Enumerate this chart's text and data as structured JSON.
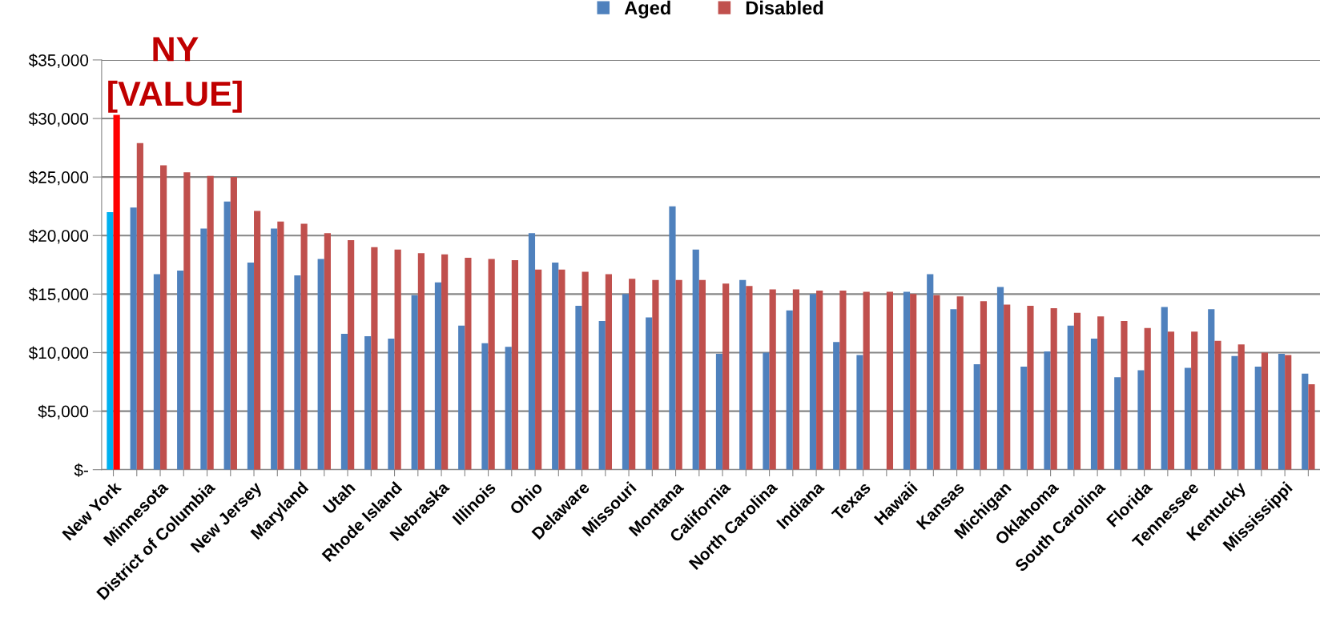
{
  "chart_data": {
    "type": "bar",
    "categories": [
      "New York",
      null,
      "Minnesota",
      null,
      "District of Columbia",
      null,
      "New Jersey",
      null,
      "Maryland",
      null,
      "Utah",
      null,
      "Rhode Island",
      null,
      "Nebraska",
      null,
      "Illinois",
      null,
      "Ohio",
      null,
      "Delaware",
      null,
      "Missouri",
      null,
      "Montana",
      null,
      "California",
      null,
      "North Carolina",
      null,
      "Indiana",
      null,
      "Texas",
      null,
      "Hawaii",
      null,
      "Kansas",
      null,
      "Michigan",
      null,
      "Oklahoma",
      null,
      "South Carolina",
      null,
      "Florida",
      null,
      "Tennessee",
      null,
      "Kentucky",
      null,
      "Mississippi",
      null
    ],
    "series": [
      {
        "name": "Aged",
        "color": "#4f81bd",
        "colors": [
          "#00b0f0",
          "#4f81bd",
          "#4f81bd",
          "#4f81bd",
          "#4f81bd",
          "#4f81bd",
          "#4f81bd",
          "#4f81bd",
          "#4f81bd",
          "#4f81bd",
          "#4f81bd",
          "#4f81bd",
          "#4f81bd",
          "#4f81bd",
          "#4f81bd",
          "#4f81bd",
          "#4f81bd",
          "#4f81bd",
          "#4f81bd",
          "#4f81bd",
          "#4f81bd",
          "#4f81bd",
          "#4f81bd",
          "#4f81bd",
          "#4f81bd",
          "#4f81bd",
          "#4f81bd",
          "#4f81bd",
          "#4f81bd",
          "#4f81bd",
          "#4f81bd",
          "#4f81bd",
          "#4f81bd",
          "#4f81bd",
          "#4f81bd",
          "#4f81bd",
          "#4f81bd",
          "#4f81bd",
          "#4f81bd",
          "#4f81bd",
          "#4f81bd",
          "#4f81bd",
          "#4f81bd",
          "#4f81bd",
          "#4f81bd",
          "#4f81bd",
          "#4f81bd",
          "#4f81bd",
          "#4f81bd",
          "#4f81bd",
          "#4f81bd",
          "#4f81bd"
        ],
        "values": [
          22000,
          22400,
          16700,
          17000,
          20600,
          22900,
          17700,
          20600,
          16600,
          18000,
          11600,
          11400,
          11200,
          14900,
          16000,
          12300,
          10800,
          10500,
          20200,
          17700,
          14000,
          12700,
          15000,
          13000,
          22500,
          18800,
          9900,
          16200,
          10000,
          13600,
          15000,
          10900,
          9800,
          null,
          15200,
          16700,
          13700,
          9000,
          15600,
          8800,
          10100,
          12300,
          11200,
          7900,
          8500,
          13900,
          8700,
          13700,
          9700,
          8800,
          9900,
          8200
        ]
      },
      {
        "name": "Disabled",
        "color": "#c0504d",
        "colors": [
          "#ff0000",
          "#c0504d",
          "#c0504d",
          "#c0504d",
          "#c0504d",
          "#c0504d",
          "#c0504d",
          "#c0504d",
          "#c0504d",
          "#c0504d",
          "#c0504d",
          "#c0504d",
          "#c0504d",
          "#c0504d",
          "#c0504d",
          "#c0504d",
          "#c0504d",
          "#c0504d",
          "#c0504d",
          "#c0504d",
          "#c0504d",
          "#c0504d",
          "#c0504d",
          "#c0504d",
          "#c0504d",
          "#c0504d",
          "#c0504d",
          "#c0504d",
          "#c0504d",
          "#c0504d",
          "#c0504d",
          "#c0504d",
          "#c0504d",
          "#c0504d",
          "#c0504d",
          "#c0504d",
          "#c0504d",
          "#c0504d",
          "#c0504d",
          "#c0504d",
          "#c0504d",
          "#c0504d",
          "#c0504d",
          "#c0504d",
          "#c0504d",
          "#c0504d",
          "#c0504d",
          "#c0504d",
          "#c0504d",
          "#c0504d",
          "#c0504d",
          "#c0504d"
        ],
        "values": [
          30300,
          27900,
          26000,
          25400,
          25100,
          25000,
          22100,
          21200,
          21000,
          20200,
          19600,
          19000,
          18800,
          18500,
          18400,
          18100,
          18000,
          17900,
          17100,
          17100,
          16900,
          16700,
          16300,
          16200,
          16200,
          16200,
          15900,
          15700,
          15400,
          15400,
          15300,
          15300,
          15200,
          15200,
          15000,
          14900,
          14800,
          14400,
          14100,
          14000,
          13800,
          13400,
          13100,
          12700,
          12100,
          11800,
          11800,
          11000,
          10700,
          10000,
          9800,
          7300
        ]
      }
    ],
    "ylim": [
      0,
      35000
    ],
    "yticks": [
      {
        "value": 0,
        "label": "$-"
      },
      {
        "value": 5000,
        "label": "$5,000"
      },
      {
        "value": 10000,
        "label": "$10,000"
      },
      {
        "value": 15000,
        "label": "$15,000"
      },
      {
        "value": 20000,
        "label": "$20,000"
      },
      {
        "value": 25000,
        "label": "$25,000"
      },
      {
        "value": 30000,
        "label": "$30,000"
      },
      {
        "value": 35000,
        "label": "$35,000"
      }
    ],
    "grid": "y",
    "legend": "top",
    "annotations": [
      {
        "text": "NY\n[VALUE]",
        "x": "New York",
        "y": 30300
      }
    ]
  }
}
